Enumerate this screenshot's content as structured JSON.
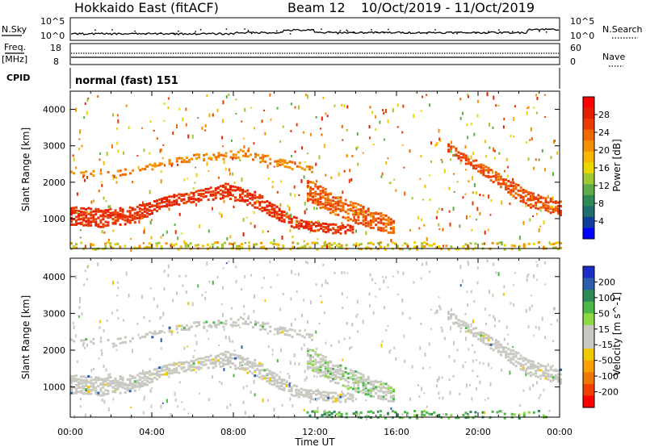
{
  "header": {
    "radar": "Hokkaido East (fitACF)",
    "beam": "Beam 12",
    "dates": "10/Oct/2019 - 11/Oct/2019"
  },
  "status_panels": {
    "nsky_label": "N.Sky",
    "nsearch_label": "N.Search",
    "noise_ticks_left": [
      "10^5",
      "10^0"
    ],
    "noise_ticks_right": [
      "10^5",
      "10^0"
    ],
    "freq_label_top": "Freq.",
    "freq_label_unit": "[MHz]",
    "freq_ticks": [
      "18",
      "8"
    ],
    "nave_label": "Nave",
    "nave_ticks": [
      "60",
      "0"
    ],
    "cpid_label": "CPID",
    "cpid_value": "normal (fast) 151"
  },
  "chart_data": [
    {
      "type": "heatmap",
      "title": "",
      "xlabel": "",
      "ylabel": "Slant Range [km]",
      "xlim": [
        0,
        24
      ],
      "ylim": [
        180,
        4500
      ],
      "x_ticks": [
        "00:00",
        "04:00",
        "08:00",
        "12:00",
        "16:00",
        "20:00",
        "00:00"
      ],
      "y_ticks": [
        "1000",
        "2000",
        "3000",
        "4000"
      ],
      "colorbar": {
        "label": "Power [dB]",
        "ticks": [
          "4",
          "8",
          "12",
          "16",
          "20",
          "24",
          "28"
        ],
        "range": [
          0,
          32
        ],
        "colors": [
          "#0000ff",
          "#0f3f9a",
          "#1f6e6e",
          "#2e8b57",
          "#5faa4a",
          "#a0c830",
          "#e8d800",
          "#f8b800",
          "#f59000",
          "#f06800",
          "#ea3c00",
          "#e61e00",
          "#ff0000"
        ]
      },
      "scatter_regions": [
        {
          "name": "main",
          "t0": 0,
          "t1": 13.8,
          "range_start": [
            1350,
            1300,
            1350,
            1650,
            1800,
            2000,
            1750,
            1100,
            900,
            850
          ],
          "range_end": [
            850,
            800,
            900,
            1350,
            1500,
            1600,
            1300,
            800,
            650,
            600
          ],
          "power": [
            27,
            29
          ]
        },
        {
          "name": "upper",
          "t0": 0,
          "t1": 11.8,
          "range_start": [
            2400,
            2300,
            2450,
            2700,
            2850,
            2950,
            2700,
            2500
          ],
          "range_end": [
            2250,
            2150,
            2300,
            2500,
            2600,
            2700,
            2450,
            2300
          ],
          "power": [
            20,
            24
          ]
        },
        {
          "name": "decay",
          "t0": 11.6,
          "t1": 15.8,
          "range_start": [
            2100,
            1800,
            1500,
            1300,
            1050
          ],
          "range_end": [
            1500,
            1200,
            950,
            750,
            600
          ],
          "power": [
            22,
            28
          ]
        },
        {
          "name": "evening",
          "t0": 18.5,
          "t1": 24,
          "range_start": [
            3100,
            2650,
            2150,
            1750,
            1500
          ],
          "range_end": [
            2850,
            2350,
            1800,
            1300,
            1100
          ],
          "power": [
            24,
            28
          ]
        },
        {
          "name": "ground",
          "t0": 0,
          "t1": 24,
          "range_start": [
            380
          ],
          "range_end": [
            180
          ],
          "power": [
            12,
            22
          ]
        }
      ]
    },
    {
      "type": "heatmap",
      "title": "",
      "xlabel": "Time UT",
      "ylabel": "Slant Range [km]",
      "xlim": [
        0,
        24
      ],
      "ylim": [
        180,
        4500
      ],
      "x_ticks": [
        "00:00",
        "04:00",
        "08:00",
        "12:00",
        "16:00",
        "20:00",
        "00:00"
      ],
      "y_ticks": [
        "1000",
        "2000",
        "3000",
        "4000"
      ],
      "colorbar": {
        "label": "Velocity [m s^-1]",
        "ticks": [
          "200",
          "100",
          "50",
          "15",
          "-15",
          "-50",
          "-100",
          "-200"
        ],
        "range": [
          -250,
          250
        ],
        "colors": [
          "#1c2cc8",
          "#2b5ea8",
          "#2e8b57",
          "#4db848",
          "#8ed844",
          "#c8c8c0",
          "#c8c8c0",
          "#f0c800",
          "#f8a000",
          "#f07800",
          "#f04000",
          "#ff0000"
        ]
      },
      "scatter_regions": [
        {
          "name": "main",
          "t0": 0,
          "t1": 13.8,
          "velocity": "ground-scatter grey, mostly |v| < 15"
        },
        {
          "name": "decay",
          "t0": 11.6,
          "t1": 15.8,
          "velocity": "mixed grey and green"
        },
        {
          "name": "evening",
          "t0": 18.5,
          "t1": 24,
          "velocity": "mostly grey"
        },
        {
          "name": "ground",
          "t0": 11.5,
          "t1": 23.5,
          "velocity": "50 to 100 (green)"
        }
      ]
    }
  ]
}
